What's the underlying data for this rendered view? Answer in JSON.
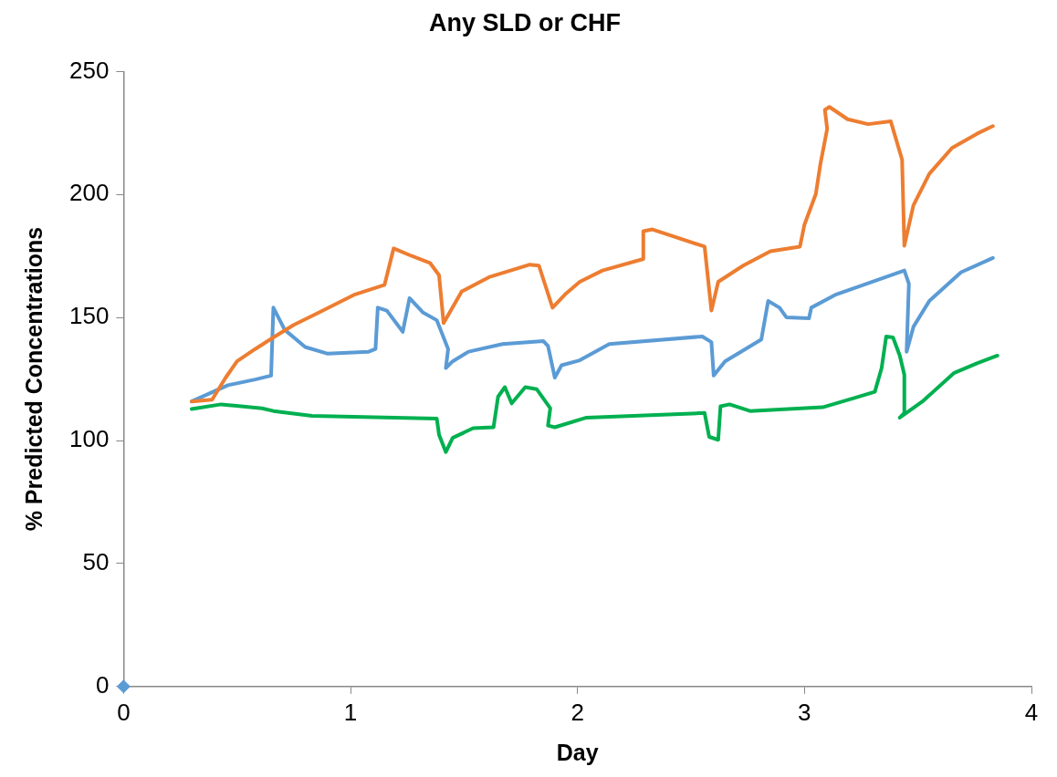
{
  "chart_data": {
    "type": "line",
    "title": "Any SLD or CHF",
    "xlabel": "Day",
    "ylabel": "% Predicted Concentrations",
    "xlim": [
      0,
      4
    ],
    "xticks": [
      0,
      1,
      2,
      3,
      4
    ],
    "ylim": [
      0,
      250
    ],
    "yticks": [
      0,
      50,
      100,
      150,
      200,
      250
    ],
    "grid": false,
    "legend": false,
    "marker": "none",
    "line_style": "solid",
    "series": [
      {
        "color": "#ed7d31",
        "x": [
          0.3,
          0.39,
          0.45,
          0.5,
          0.58,
          0.66,
          0.75,
          0.86,
          1.02,
          1.15,
          1.19,
          1.27,
          1.35,
          1.39,
          1.41,
          1.49,
          1.61,
          1.79,
          1.83,
          1.89,
          1.95,
          2.01,
          2.11,
          2.29,
          2.29,
          2.33,
          2.56,
          2.59,
          2.62,
          2.73,
          2.85,
          2.98,
          3.0,
          3.05,
          3.07,
          3.1,
          3.09,
          3.11,
          3.19,
          3.28,
          3.38,
          3.43,
          3.44,
          3.48,
          3.55,
          3.65,
          3.76,
          3.83
        ],
        "values": [
          115.9,
          116.6,
          125.6,
          132.2,
          137.2,
          141.9,
          147.0,
          152.0,
          159.4,
          163.3,
          178.1,
          175.0,
          172.2,
          167.2,
          147.7,
          160.6,
          166.4,
          171.5,
          171.1,
          154.0,
          159.8,
          164.5,
          169.1,
          173.8,
          185.1,
          185.8,
          178.8,
          152.8,
          164.5,
          171.1,
          176.9,
          178.8,
          187.8,
          200.2,
          212.3,
          226.7,
          234.4,
          235.6,
          230.6,
          228.6,
          229.8,
          214.2,
          179.2,
          195.6,
          208.4,
          218.9,
          224.7,
          227.8
        ]
      },
      {
        "color": "#5b9bd5",
        "x": [
          0.3,
          0.46,
          0.58,
          0.65,
          0.66,
          0.71,
          0.8,
          0.9,
          1.08,
          1.11,
          1.12,
          1.16,
          1.23,
          1.26,
          1.32,
          1.38,
          1.43,
          1.42,
          1.45,
          1.52,
          1.67,
          1.85,
          1.87,
          1.9,
          1.93,
          2.01,
          2.14,
          2.55,
          2.59,
          2.6,
          2.65,
          2.81,
          2.84,
          2.89,
          2.92,
          3.02,
          3.03,
          3.14,
          3.26,
          3.44,
          3.46,
          3.45,
          3.48,
          3.55,
          3.69,
          3.83
        ],
        "values": [
          115.9,
          122.5,
          124.8,
          126.4,
          154.0,
          145.0,
          138.0,
          135.3,
          136.1,
          137.2,
          154.0,
          152.8,
          144.2,
          157.9,
          152.0,
          148.9,
          137.2,
          129.5,
          132.2,
          136.1,
          139.2,
          140.4,
          138.4,
          125.6,
          130.6,
          132.6,
          139.2,
          142.3,
          140.0,
          126.4,
          132.2,
          141.1,
          156.7,
          154.0,
          150.1,
          149.7,
          154.0,
          159.4,
          163.3,
          169.1,
          163.7,
          136.1,
          146.2,
          156.7,
          168.4,
          174.2
        ]
      },
      {
        "color": "#00b050",
        "x": [
          0.3,
          0.43,
          0.61,
          0.66,
          0.83,
          1.38,
          1.39,
          1.42,
          1.45,
          1.54,
          1.63,
          1.65,
          1.68,
          1.71,
          1.77,
          1.82,
          1.88,
          1.87,
          1.9,
          2.04,
          2.56,
          2.58,
          2.62,
          2.63,
          2.67,
          2.76,
          3.08,
          3.21,
          3.31,
          3.34,
          3.36,
          3.39,
          3.42,
          3.44,
          3.44,
          3.42,
          3.52,
          3.66,
          3.76,
          3.85
        ],
        "values": [
          112.8,
          114.7,
          113.1,
          112.0,
          110.0,
          108.9,
          102.3,
          95.3,
          101.1,
          105.0,
          105.4,
          117.8,
          121.7,
          115.1,
          121.7,
          120.9,
          113.1,
          106.1,
          105.4,
          109.3,
          111.2,
          101.5,
          100.3,
          113.9,
          114.7,
          112.0,
          113.5,
          117.0,
          119.8,
          129.5,
          142.3,
          141.9,
          134.5,
          126.7,
          111.2,
          109.3,
          115.9,
          127.5,
          131.4,
          134.5
        ]
      },
      {
        "type": "scatter",
        "marker": "diamond",
        "color": "#5b9bd5",
        "x": [
          0
        ],
        "values": [
          0
        ]
      }
    ]
  }
}
